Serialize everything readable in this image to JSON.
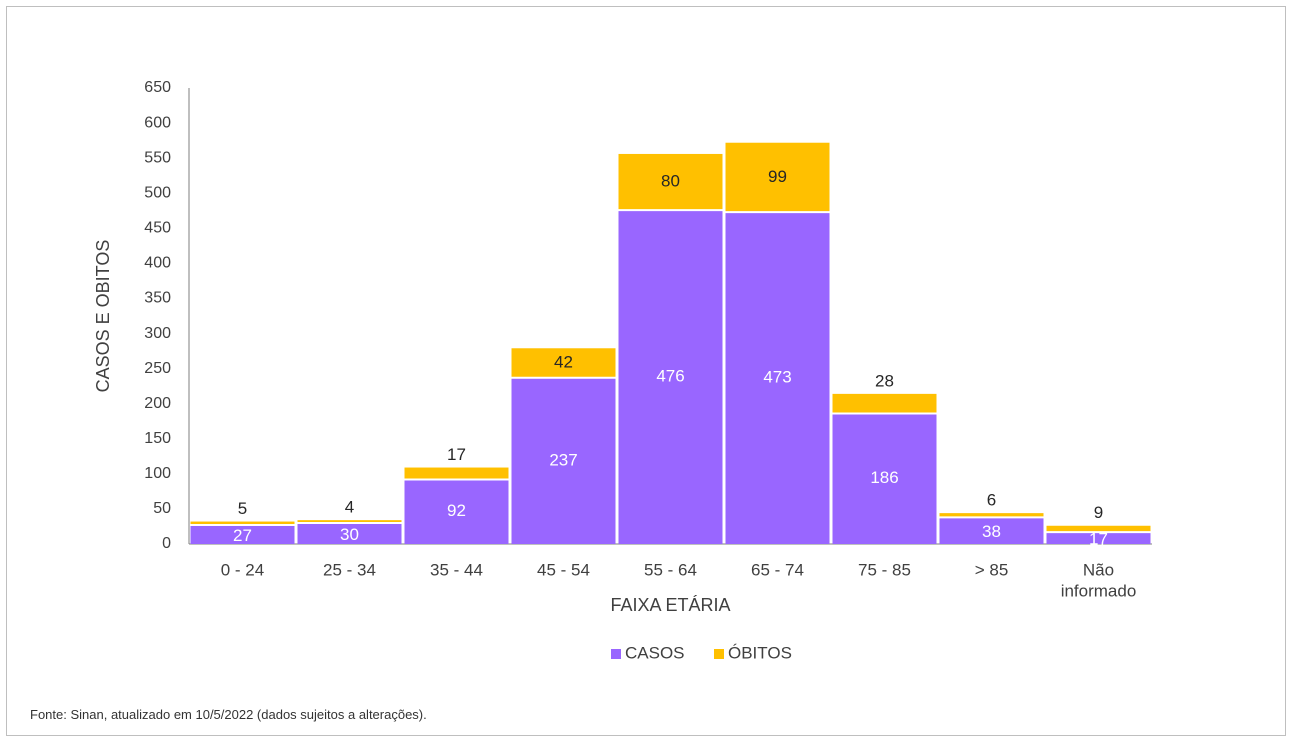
{
  "source_note": "Fonte: Sinan, atualizado em 10/5/2022 (dados sujeitos a alterações).",
  "colors": {
    "casos": "#9966ff",
    "obitos": "#ffc000",
    "axis": "#7f7f7f",
    "text": "#404040"
  },
  "chart_data": {
    "type": "bar",
    "stacked": true,
    "categories": [
      "0 - 24",
      "25 - 34",
      "35 - 44",
      "45 - 54",
      "55 - 64",
      "65 - 74",
      "75 - 85",
      "> 85",
      "Não informado"
    ],
    "series": [
      {
        "name": "CASOS",
        "values": [
          27,
          30,
          92,
          237,
          476,
          473,
          186,
          38,
          17
        ]
      },
      {
        "name": "ÓBITOS",
        "values": [
          5,
          4,
          17,
          42,
          80,
          99,
          28,
          6,
          9
        ]
      }
    ],
    "xlabel": "FAIXA ETÁRIA",
    "ylabel": "CASOS E OBITOS",
    "ylim": [
      0,
      650
    ],
    "yticks": [
      0,
      50,
      100,
      150,
      200,
      250,
      300,
      350,
      400,
      450,
      500,
      550,
      600,
      650
    ],
    "grid": false,
    "legend": "bottom-center"
  }
}
